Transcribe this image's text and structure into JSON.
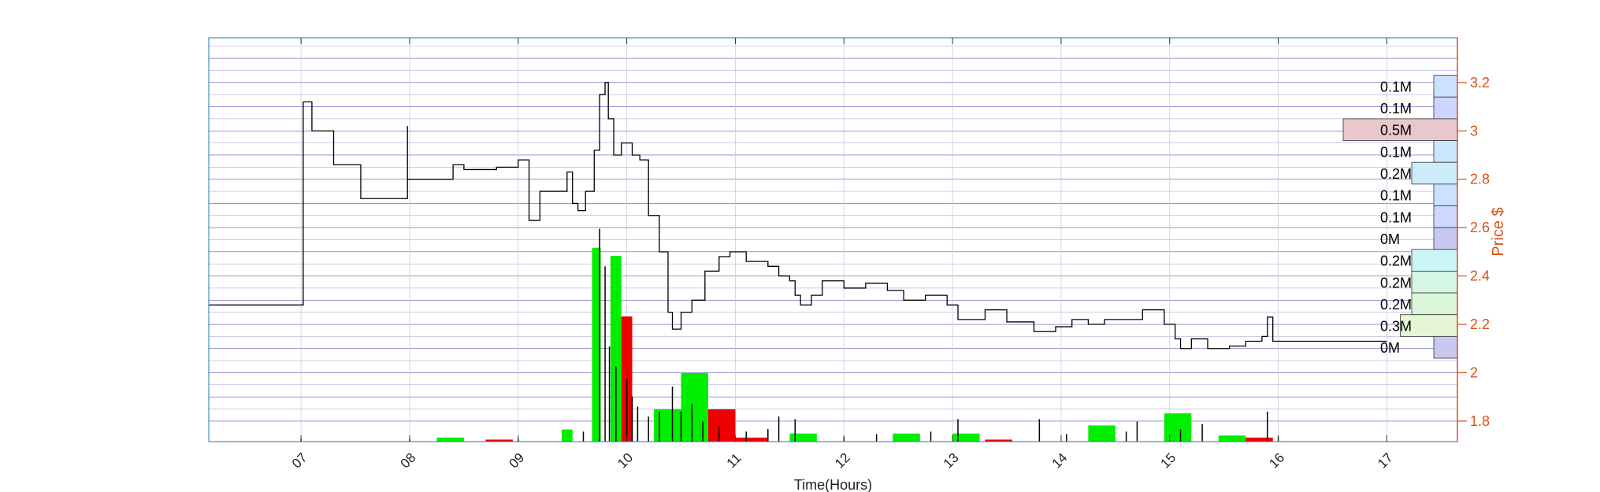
{
  "chart_data": {
    "type": "line",
    "title": "",
    "xlabel": "Time(Hours)",
    "ylabel": "Price $",
    "xlim": [
      6.15,
      17.65
    ],
    "ylim": [
      1.715,
      3.385
    ],
    "x_ticks": [
      "07",
      "08",
      "09",
      "10",
      "11",
      "12",
      "13",
      "14",
      "15",
      "16",
      "17"
    ],
    "y_ticks": [
      "1.8",
      "2",
      "2.2",
      "2.4",
      "2.6",
      "2.8",
      "3",
      "3.2"
    ],
    "grid": true,
    "colors": {
      "price": "#000000",
      "volume_up": "#00ee00",
      "volume_down": "#ee0000",
      "axis_right": "#d95319",
      "axis_box": "#1f77b4",
      "grid_h": "#2222aa",
      "grid_v": "#ccccdd"
    },
    "series": [
      {
        "values": [
          [
            6.15,
            2.28
          ],
          [
            6.98,
            2.28
          ],
          [
            7.02,
            3.12
          ],
          [
            7.1,
            3.11
          ],
          [
            7.1,
            3.0
          ],
          [
            7.3,
            3.0
          ],
          [
            7.3,
            2.86
          ],
          [
            7.5,
            2.86
          ],
          [
            7.55,
            2.72
          ],
          [
            7.9,
            2.72
          ],
          [
            7.98,
            3.02
          ],
          [
            7.98,
            2.8
          ],
          [
            8.3,
            2.8
          ],
          [
            8.4,
            2.86
          ],
          [
            8.5,
            2.84
          ],
          [
            8.8,
            2.85
          ],
          [
            9.0,
            2.88
          ],
          [
            9.1,
            2.8
          ],
          [
            9.1,
            2.63
          ],
          [
            9.2,
            2.75
          ],
          [
            9.35,
            2.75
          ],
          [
            9.45,
            2.83
          ],
          [
            9.5,
            2.7
          ],
          [
            9.55,
            2.67
          ],
          [
            9.62,
            2.75
          ],
          [
            9.7,
            2.92
          ],
          [
            9.75,
            3.15
          ],
          [
            9.8,
            3.2
          ],
          [
            9.83,
            3.05
          ],
          [
            9.88,
            2.9
          ],
          [
            9.95,
            2.95
          ],
          [
            10.05,
            2.9
          ],
          [
            10.12,
            2.88
          ],
          [
            10.2,
            2.65
          ],
          [
            10.3,
            2.5
          ],
          [
            10.38,
            2.25
          ],
          [
            10.42,
            2.18
          ],
          [
            10.5,
            2.25
          ],
          [
            10.6,
            2.3
          ],
          [
            10.72,
            2.42
          ],
          [
            10.85,
            2.48
          ],
          [
            10.95,
            2.5
          ],
          [
            11.1,
            2.46
          ],
          [
            11.3,
            2.44
          ],
          [
            11.4,
            2.4
          ],
          [
            11.5,
            2.38
          ],
          [
            11.55,
            2.32
          ],
          [
            11.6,
            2.28
          ],
          [
            11.7,
            2.32
          ],
          [
            11.8,
            2.38
          ],
          [
            12.0,
            2.35
          ],
          [
            12.2,
            2.37
          ],
          [
            12.4,
            2.34
          ],
          [
            12.55,
            2.3
          ],
          [
            12.75,
            2.32
          ],
          [
            12.95,
            2.28
          ],
          [
            13.05,
            2.22
          ],
          [
            13.3,
            2.26
          ],
          [
            13.5,
            2.21
          ],
          [
            13.75,
            2.17
          ],
          [
            13.95,
            2.19
          ],
          [
            14.1,
            2.22
          ],
          [
            14.25,
            2.2
          ],
          [
            14.4,
            2.22
          ],
          [
            14.6,
            2.22
          ],
          [
            14.75,
            2.26
          ],
          [
            14.9,
            2.26
          ],
          [
            14.95,
            2.2
          ],
          [
            15.05,
            2.14
          ],
          [
            15.1,
            2.1
          ],
          [
            15.2,
            2.14
          ],
          [
            15.35,
            2.1
          ],
          [
            15.55,
            2.11
          ],
          [
            15.7,
            2.13
          ],
          [
            15.85,
            2.15
          ],
          [
            15.9,
            2.23
          ],
          [
            15.95,
            2.13
          ],
          [
            17.0,
            2.13
          ]
        ]
      }
    ],
    "volume_bars": [
      {
        "x0": 9.68,
        "x1": 9.76,
        "height": 0.48,
        "color": "up"
      },
      {
        "x0": 9.85,
        "x1": 9.95,
        "height": 0.46,
        "color": "up"
      },
      {
        "x0": 9.95,
        "x1": 10.05,
        "height": 0.31,
        "color": "down"
      },
      {
        "x0": 10.25,
        "x1": 10.5,
        "height": 0.08,
        "color": "up"
      },
      {
        "x0": 10.5,
        "x1": 10.75,
        "height": 0.17,
        "color": "up"
      },
      {
        "x0": 10.75,
        "x1": 11.0,
        "height": 0.08,
        "color": "down"
      },
      {
        "x0": 14.25,
        "x1": 14.5,
        "height": 0.04,
        "color": "up"
      },
      {
        "x0": 14.95,
        "x1": 15.2,
        "height": 0.07,
        "color": "up"
      },
      {
        "x0": 9.4,
        "x1": 9.5,
        "height": 0.03,
        "color": "up"
      },
      {
        "x0": 8.25,
        "x1": 8.5,
        "height": 0.01,
        "color": "up"
      },
      {
        "x0": 12.45,
        "x1": 12.7,
        "height": 0.02,
        "color": "up"
      },
      {
        "x0": 13.0,
        "x1": 13.25,
        "height": 0.02,
        "color": "up"
      },
      {
        "x0": 11.5,
        "x1": 11.75,
        "height": 0.02,
        "color": "up"
      },
      {
        "x0": 15.45,
        "x1": 15.7,
        "height": 0.015,
        "color": "up"
      },
      {
        "x0": 8.7,
        "x1": 8.95,
        "height": 0.005,
        "color": "down"
      },
      {
        "x0": 11.0,
        "x1": 11.3,
        "height": 0.01,
        "color": "down"
      },
      {
        "x0": 13.3,
        "x1": 13.55,
        "height": 0.005,
        "color": "down"
      },
      {
        "x0": 15.7,
        "x1": 15.95,
        "height": 0.01,
        "color": "down"
      }
    ],
    "volume_ticks": [
      [
        9.75,
        0.85
      ],
      [
        9.8,
        0.7
      ],
      [
        9.84,
        0.38
      ],
      [
        9.9,
        0.3
      ],
      [
        10.0,
        0.25
      ],
      [
        10.05,
        0.18
      ],
      [
        10.1,
        0.14
      ],
      [
        10.2,
        0.1
      ],
      [
        10.3,
        0.12
      ],
      [
        10.42,
        0.22
      ],
      [
        10.5,
        0.12
      ],
      [
        10.6,
        0.15
      ],
      [
        10.7,
        0.08
      ],
      [
        10.85,
        0.06
      ],
      [
        11.1,
        0.04
      ],
      [
        11.3,
        0.05
      ],
      [
        11.4,
        0.1
      ],
      [
        11.55,
        0.09
      ],
      [
        12.0,
        0.02
      ],
      [
        12.3,
        0.03
      ],
      [
        12.8,
        0.04
      ],
      [
        13.05,
        0.09
      ],
      [
        13.8,
        0.09
      ],
      [
        14.05,
        0.03
      ],
      [
        14.6,
        0.04
      ],
      [
        14.7,
        0.08
      ],
      [
        15.1,
        0.05
      ],
      [
        15.3,
        0.07
      ],
      [
        15.9,
        0.12
      ],
      [
        16.0,
        0.02
      ],
      [
        9.6,
        0.04
      ],
      [
        7.0,
        0.01
      ],
      [
        8.0,
        0.01
      ],
      [
        9.0,
        0.01
      ]
    ],
    "volume_profile": [
      {
        "price_low": 3.14,
        "price_high": 3.23,
        "label": "0.1M",
        "value": 0.1,
        "color": "#cce0ff"
      },
      {
        "price_low": 3.05,
        "price_high": 3.14,
        "label": "0.1M",
        "value": 0.1,
        "color": "#ccd4ff"
      },
      {
        "price_low": 2.96,
        "price_high": 3.05,
        "label": "0.5M",
        "value": 0.5,
        "color": "#e8c8cc"
      },
      {
        "price_low": 2.87,
        "price_high": 2.96,
        "label": "0.1M",
        "value": 0.1,
        "color": "#cce6ff"
      },
      {
        "price_low": 2.78,
        "price_high": 2.87,
        "label": "0.2M",
        "value": 0.2,
        "color": "#ccecfa"
      },
      {
        "price_low": 2.69,
        "price_high": 2.78,
        "label": "0.1M",
        "value": 0.1,
        "color": "#cce0ff"
      },
      {
        "price_low": 2.6,
        "price_high": 2.69,
        "label": "0.1M",
        "value": 0.1,
        "color": "#ccd8ff"
      },
      {
        "price_low": 2.51,
        "price_high": 2.6,
        "label": "0M",
        "value": 0.05,
        "color": "#c8c8f0"
      },
      {
        "price_low": 2.42,
        "price_high": 2.51,
        "label": "0.2M",
        "value": 0.2,
        "color": "#ccf6f6"
      },
      {
        "price_low": 2.33,
        "price_high": 2.42,
        "label": "0.2M",
        "value": 0.2,
        "color": "#d4f6e4"
      },
      {
        "price_low": 2.24,
        "price_high": 2.33,
        "label": "0.2M",
        "value": 0.2,
        "color": "#dcf6dc"
      },
      {
        "price_low": 2.15,
        "price_high": 2.24,
        "label": "0.3M",
        "value": 0.25,
        "color": "#e4f6d4"
      },
      {
        "price_low": 2.06,
        "price_high": 2.15,
        "label": "0M",
        "value": 0.05,
        "color": "#c8c8f0"
      }
    ]
  }
}
